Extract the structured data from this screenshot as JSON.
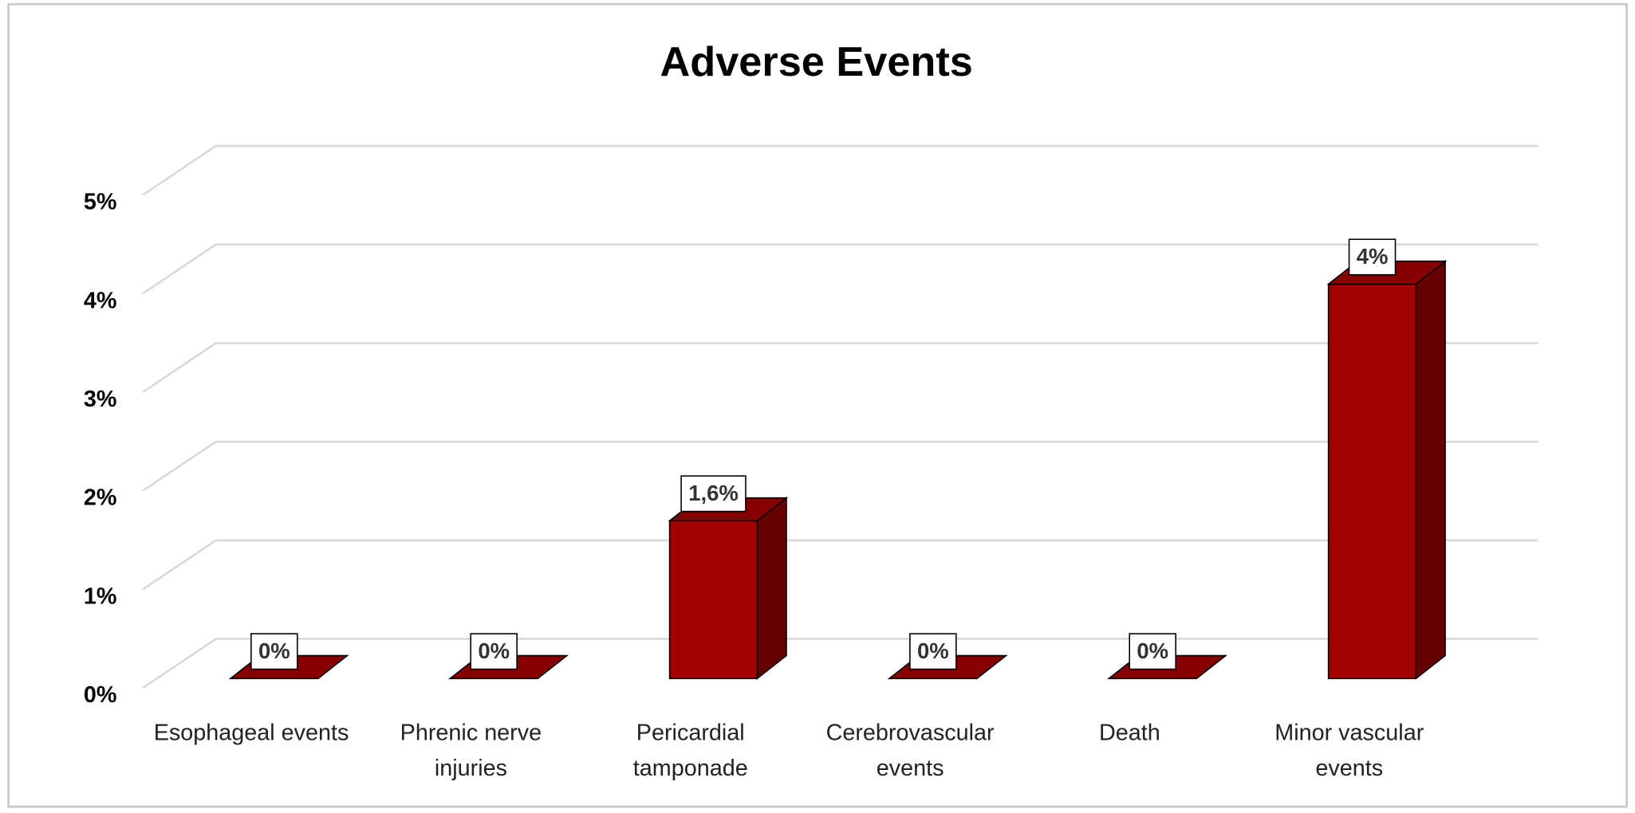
{
  "chart_data": {
    "type": "bar3d",
    "title": "Adverse Events",
    "categories": [
      "Esophageal events",
      "Phrenic nerve injuries",
      "Pericardial tamponade",
      "Cerebrovascular events",
      "Death",
      "Minor vascular events"
    ],
    "values": [
      0,
      0,
      1.6,
      0,
      0,
      4
    ],
    "value_labels": [
      "0%",
      "0%",
      "1,6%",
      "0%",
      "0%",
      "4%"
    ],
    "color": "#a30000",
    "ylim": [
      0,
      5
    ],
    "yticks": [
      {
        "value": 0,
        "label": "0%"
      },
      {
        "value": 1,
        "label": "1%"
      },
      {
        "value": 2,
        "label": "2%"
      },
      {
        "value": 3,
        "label": "3%"
      },
      {
        "value": 4,
        "label": "4%"
      },
      {
        "value": 5,
        "label": "5%"
      }
    ],
    "grid": true
  }
}
